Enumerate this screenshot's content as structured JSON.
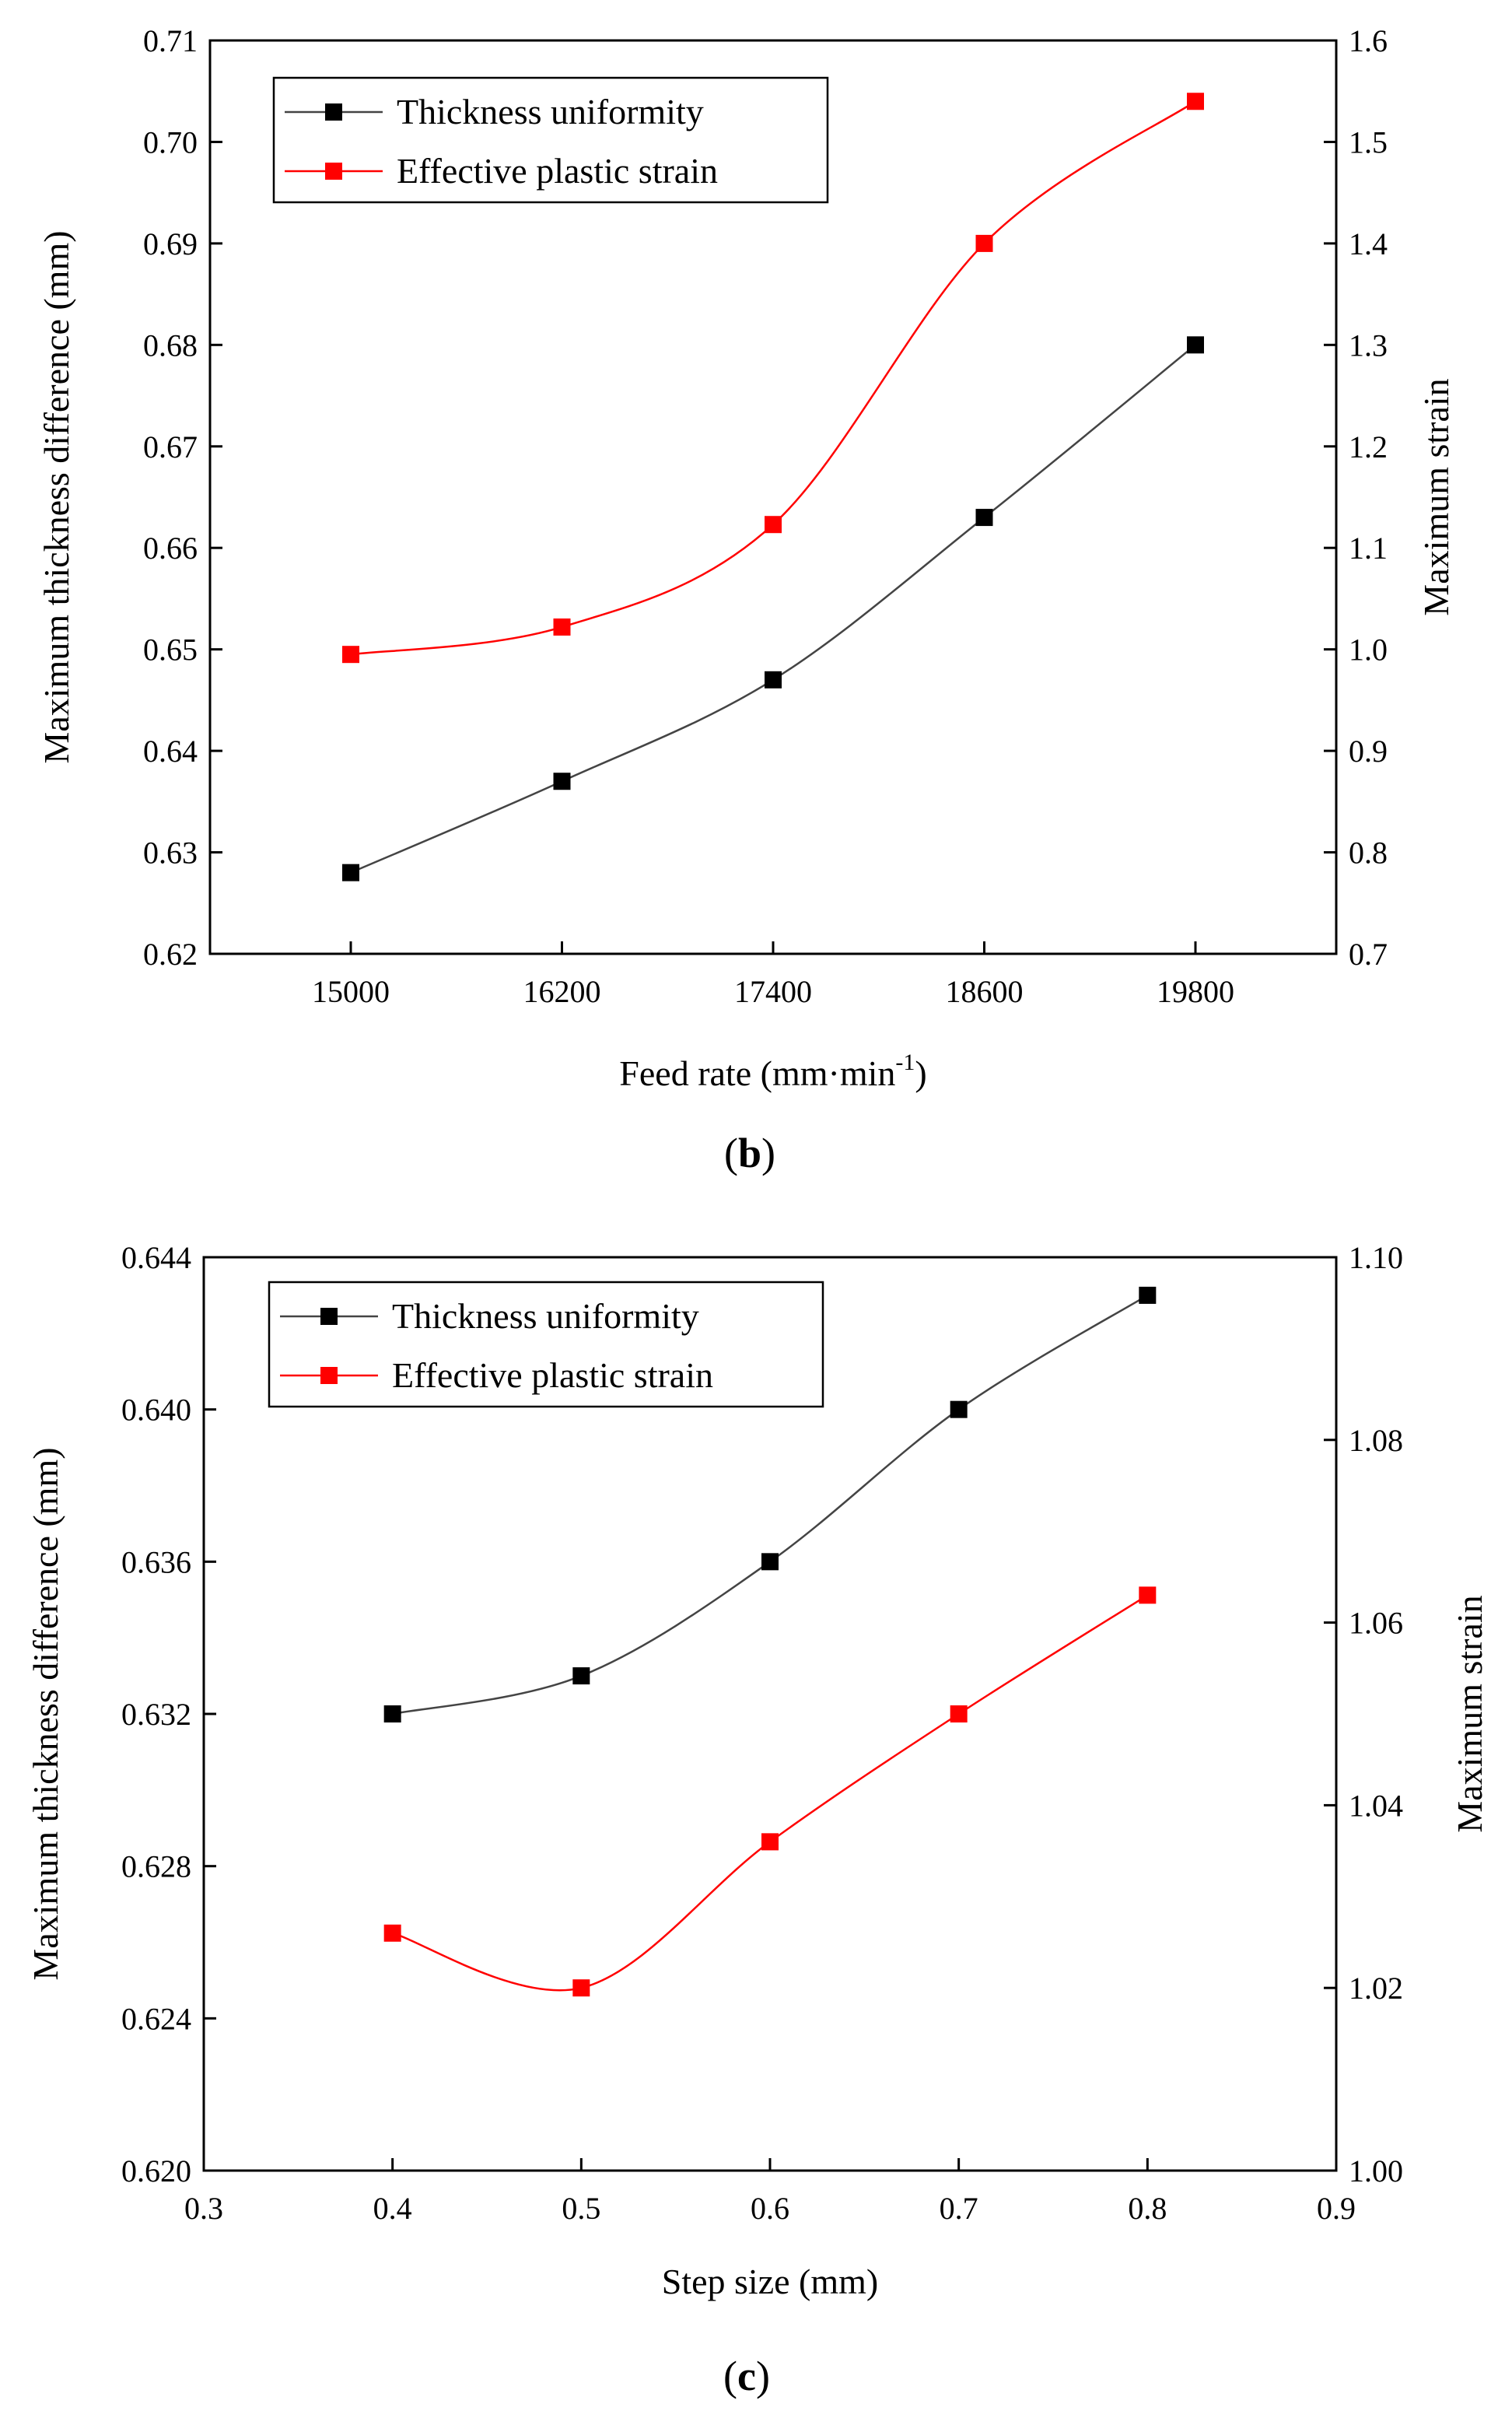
{
  "chart_data": [
    {
      "type": "line",
      "panel_label": "b",
      "xlabel": "Feed rate (mm·min",
      "xlabel_sup": "-1",
      "xlabel_tail": ")",
      "ylabel": "Maximum thickness difference (mm)",
      "y2label": "Maximum strain",
      "categories": [
        "15000",
        "16200",
        "17400",
        "18600",
        "19800"
      ],
      "xlim": [
        14200,
        20600
      ],
      "ylim": [
        0.62,
        0.71
      ],
      "y2lim": [
        0.7,
        1.6
      ],
      "yticks": [
        "0.62",
        "0.63",
        "0.64",
        "0.65",
        "0.66",
        "0.67",
        "0.68",
        "0.69",
        "0.70",
        "0.71"
      ],
      "y2ticks": [
        "0.7",
        "0.8",
        "0.9",
        "1.0",
        "1.1",
        "1.2",
        "1.3",
        "1.4",
        "1.5",
        "1.6"
      ],
      "legend_position": "top-left",
      "series": [
        {
          "name": "Thickness uniformity",
          "axis": "left",
          "color": "#000000",
          "x": [
            15000,
            16200,
            17400,
            18600,
            19800
          ],
          "values": [
            0.628,
            0.637,
            0.647,
            0.663,
            0.68
          ]
        },
        {
          "name": "Effective plastic strain",
          "axis": "right",
          "color": "#ff0000",
          "x": [
            15000,
            16200,
            17400,
            18600,
            19800
          ],
          "values": [
            0.995,
            1.022,
            1.123,
            1.4,
            1.54
          ]
        }
      ]
    },
    {
      "type": "line",
      "panel_label": "c",
      "xlabel": "Step size (mm)",
      "ylabel": "Maximum thickness difference (mm)",
      "y2label": "Maximum strain",
      "categories": [
        "0.3",
        "0.4",
        "0.5",
        "0.6",
        "0.7",
        "0.8",
        "0.9"
      ],
      "xlim": [
        0.3,
        0.9
      ],
      "ylim": [
        0.62,
        0.644
      ],
      "y2lim": [
        1.0,
        1.1
      ],
      "yticks": [
        "0.620",
        "0.624",
        "0.628",
        "0.632",
        "0.636",
        "0.640",
        "0.644"
      ],
      "y2ticks": [
        "1.00",
        "1.02",
        "1.04",
        "1.06",
        "1.08",
        "1.10"
      ],
      "legend_position": "top-left",
      "series": [
        {
          "name": "Thickness uniformity",
          "axis": "left",
          "color": "#000000",
          "x": [
            0.4,
            0.5,
            0.6,
            0.7,
            0.8
          ],
          "values": [
            0.632,
            0.633,
            0.636,
            0.64,
            0.643
          ]
        },
        {
          "name": "Effective plastic strain",
          "axis": "right",
          "color": "#ff0000",
          "x": [
            0.4,
            0.5,
            0.6,
            0.7,
            0.8
          ],
          "values": [
            1.026,
            1.02,
            1.036,
            1.05,
            1.063
          ]
        }
      ]
    }
  ]
}
